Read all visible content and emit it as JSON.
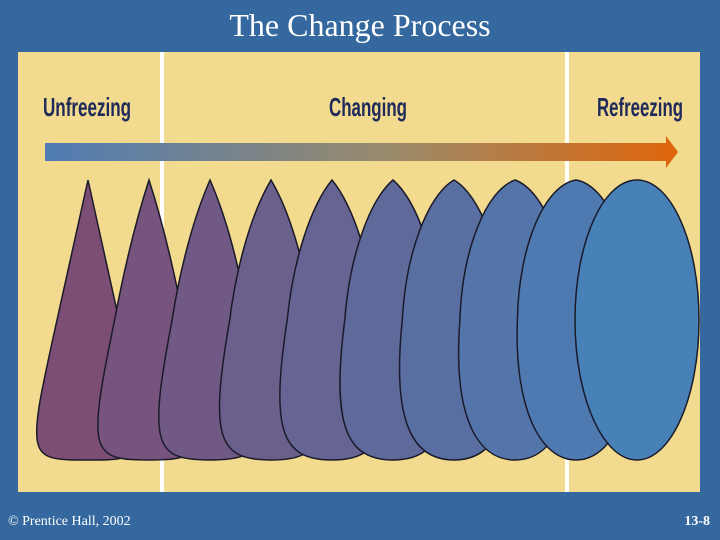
{
  "title": "The Change Process",
  "stages": [
    "Unfreezing",
    "Changing",
    "Refreezing"
  ],
  "footer": {
    "copyright": "© Prentice Hall, 2002",
    "page": "13-8"
  }
}
